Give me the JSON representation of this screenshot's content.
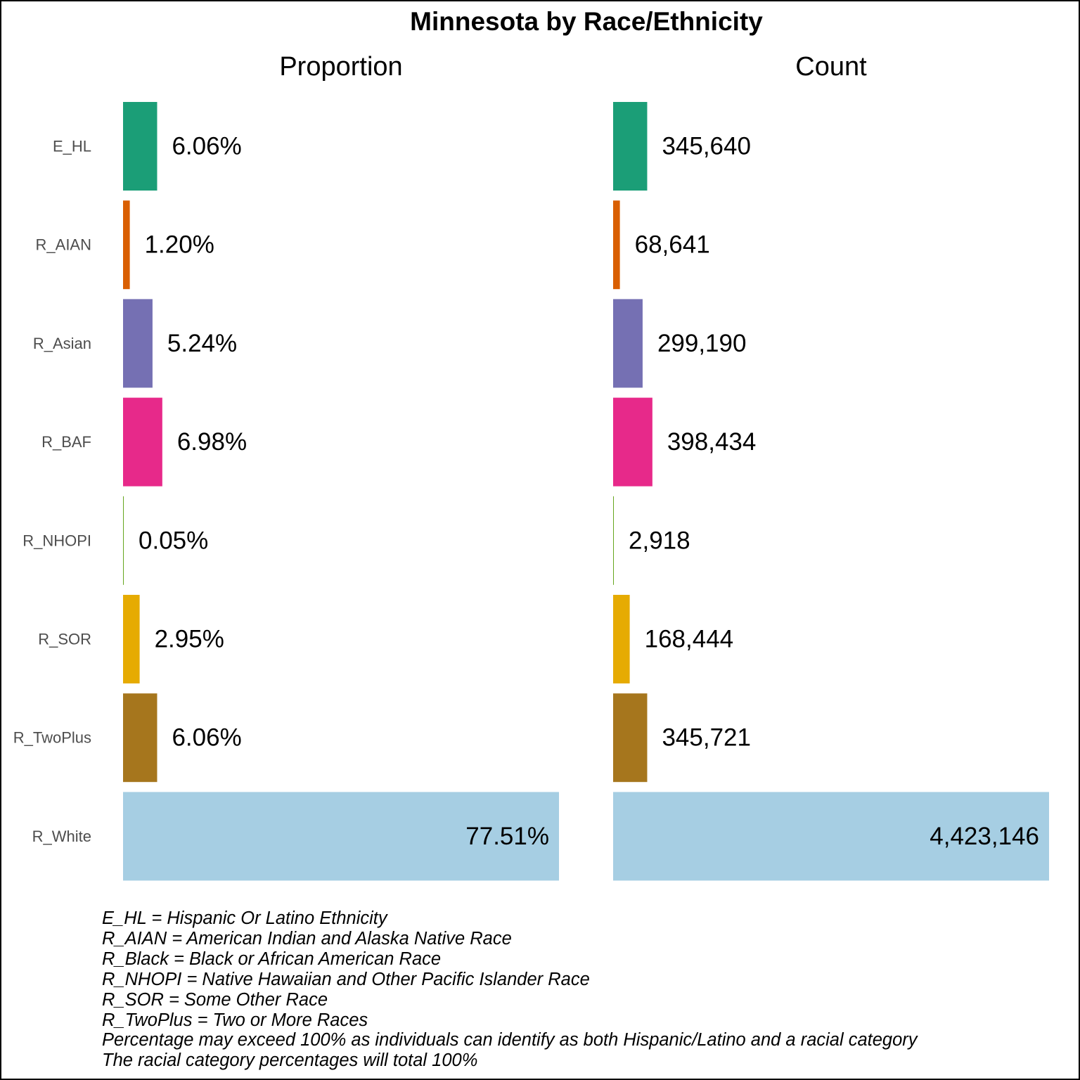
{
  "chart_data": {
    "type": "bar",
    "orientation": "horizontal",
    "title": "Minnesota by Race/Ethnicity",
    "categories": [
      "E_HL",
      "R_AIAN",
      "R_Asian",
      "R_BAF",
      "R_NHOPI",
      "R_SOR",
      "R_TwoPlus",
      "R_White"
    ],
    "colors": [
      "#1b9e77",
      "#d95f02",
      "#7570b3",
      "#e7298a",
      "#66a61e",
      "#e6ab02",
      "#a6761d",
      "#a6cee3"
    ],
    "panels": [
      {
        "name": "Proportion",
        "values": [
          6.06,
          1.2,
          5.24,
          6.98,
          0.05,
          2.95,
          6.06,
          77.51
        ],
        "labels": [
          "6.06%",
          "1.20%",
          "5.24%",
          "6.98%",
          "0.05%",
          "2.95%",
          "6.06%",
          "77.51%"
        ],
        "xlim": [
          0,
          77.51
        ]
      },
      {
        "name": "Count",
        "values": [
          345640,
          68641,
          299190,
          398434,
          2918,
          168444,
          345721,
          4423146
        ],
        "labels": [
          "345,640",
          "68,641",
          "299,190",
          "398,434",
          "2,918",
          "168,444",
          "345,721",
          "4,423,146"
        ],
        "xlim": [
          0,
          4423146
        ]
      }
    ],
    "grid": false,
    "legend": "none"
  },
  "footnotes": [
    "E_HL = Hispanic Or Latino Ethnicity",
    "R_AIAN = American Indian and Alaska Native Race",
    "R_Black = Black or African American Race",
    "R_NHOPI = Native Hawaiian and Other Pacific Islander Race",
    "R_SOR = Some Other Race",
    "R_TwoPlus = Two or More Races",
    "Percentage may exceed 100% as individuals can identify as both Hispanic/Latino and a racial category",
    "The racial category percentages will total 100%"
  ]
}
